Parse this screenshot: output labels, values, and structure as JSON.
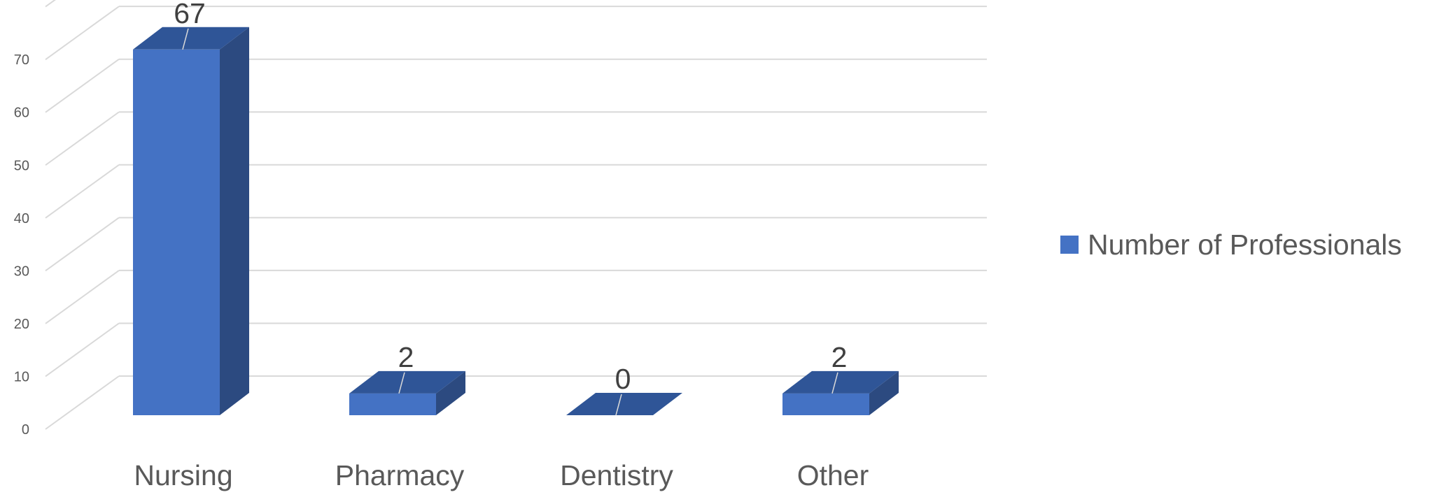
{
  "chart_data": {
    "type": "bar",
    "style": "3d-column",
    "categories": [
      "Nursing",
      "Pharmacy",
      "Dentistry",
      "Other"
    ],
    "series": [
      {
        "name": "Number of Professionals",
        "values": [
          67,
          2,
          0,
          2
        ]
      }
    ],
    "data_labels": [
      "67",
      "2",
      "0",
      "2"
    ],
    "y_ticks": [
      "0",
      "10",
      "20",
      "30",
      "40",
      "50",
      "60",
      "70"
    ],
    "ylim": [
      0,
      70
    ],
    "grid": true,
    "legend_position": "right",
    "colors": {
      "bar_front": "#4472C4",
      "bar_side": "#2C4A80",
      "bar_top": "#2F5597",
      "gridline": "#D9D9D9",
      "axis_text": "#595959",
      "label_text": "#404040"
    }
  }
}
